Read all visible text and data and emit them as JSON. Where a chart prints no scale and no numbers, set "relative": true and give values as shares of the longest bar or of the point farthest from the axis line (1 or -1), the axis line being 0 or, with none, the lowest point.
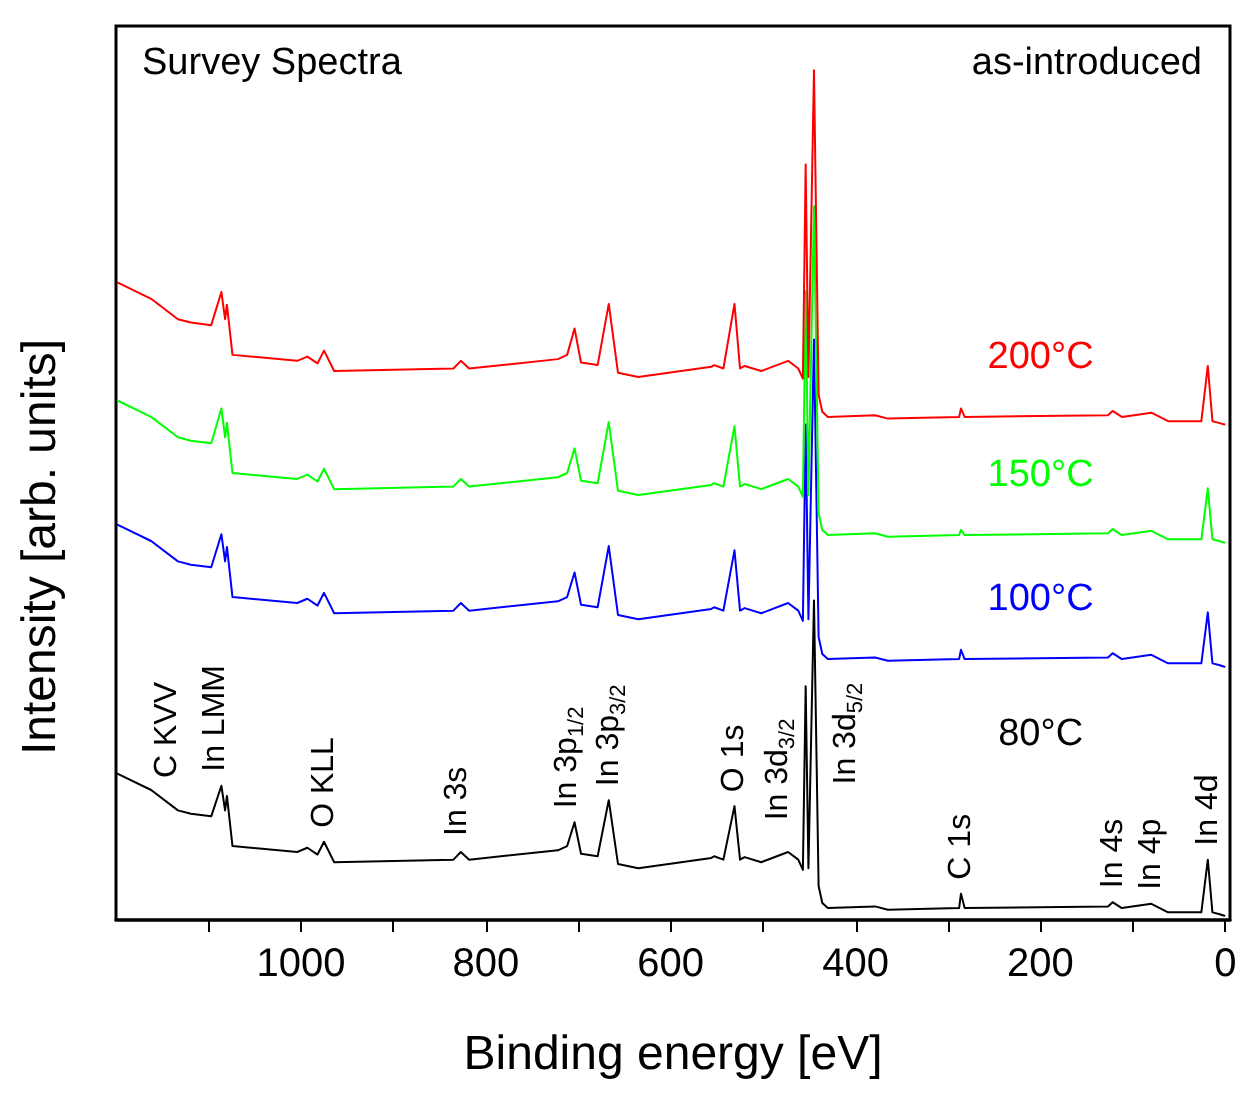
{
  "chart_data": {
    "type": "line",
    "title": "Survey Spectra",
    "subtitle": "as-introduced",
    "xlabel": "Binding energy [eV]",
    "ylabel": "Intensity [arb. units]",
    "relative": true,
    "xlim": [
      1200,
      -5
    ],
    "xticks": [
      0,
      {
        "value": 100,
        "label": null
      },
      200,
      {
        "value": 300,
        "label": null
      },
      400,
      {
        "value": 500,
        "label": null
      },
      600,
      {
        "value": 700,
        "label": null
      },
      800,
      {
        "value": 900,
        "label": null
      },
      1000,
      {
        "value": 1100,
        "label": null
      }
    ],
    "x": [
      1198,
      1162,
      1133,
      1119,
      1097,
      1086,
      1082,
      1080,
      1074,
      1004,
      993,
      982,
      975,
      964,
      835,
      827,
      818,
      722,
      712,
      704,
      697,
      679,
      667,
      657,
      635,
      556,
      553,
      543,
      531,
      525,
      520,
      502,
      473,
      462,
      457,
      454,
      451,
      445,
      440,
      436,
      430,
      379,
      365,
      288,
      286,
      282,
      127,
      122,
      112,
      80,
      62,
      26,
      19,
      14,
      7,
      1
    ],
    "series": [
      {
        "name": "80°C",
        "color": "#000000",
        "values": [
          0.172,
          0.153,
          0.129,
          0.125,
          0.122,
          0.158,
          0.129,
          0.146,
          0.087,
          0.08,
          0.085,
          0.077,
          0.092,
          0.068,
          0.071,
          0.08,
          0.071,
          0.082,
          0.087,
          0.115,
          0.078,
          0.075,
          0.141,
          0.066,
          0.061,
          0.073,
          0.075,
          0.071,
          0.134,
          0.071,
          0.074,
          0.068,
          0.08,
          0.071,
          0.059,
          0.275,
          0.061,
          0.376,
          0.04,
          0.02,
          0.014,
          0.016,
          0.012,
          0.014,
          0.031,
          0.014,
          0.016,
          0.021,
          0.014,
          0.019,
          0.009,
          0.009,
          0.071,
          0.009,
          0.007,
          0.005
        ]
      },
      {
        "name": "100°C",
        "color": "#0000ff",
        "values": [
          0.465,
          0.446,
          0.422,
          0.418,
          0.415,
          0.454,
          0.422,
          0.439,
          0.38,
          0.373,
          0.378,
          0.37,
          0.385,
          0.361,
          0.364,
          0.373,
          0.364,
          0.375,
          0.38,
          0.409,
          0.371,
          0.368,
          0.44,
          0.359,
          0.354,
          0.366,
          0.368,
          0.364,
          0.435,
          0.364,
          0.367,
          0.361,
          0.373,
          0.364,
          0.352,
          0.583,
          0.354,
          0.683,
          0.333,
          0.313,
          0.307,
          0.309,
          0.305,
          0.307,
          0.318,
          0.307,
          0.309,
          0.314,
          0.307,
          0.312,
          0.302,
          0.302,
          0.362,
          0.302,
          0.3,
          0.298
        ]
      },
      {
        "name": "150°C",
        "color": "#00ff00",
        "values": [
          0.611,
          0.592,
          0.568,
          0.564,
          0.561,
          0.602,
          0.568,
          0.585,
          0.526,
          0.519,
          0.524,
          0.516,
          0.531,
          0.507,
          0.51,
          0.519,
          0.51,
          0.521,
          0.526,
          0.555,
          0.517,
          0.514,
          0.586,
          0.505,
          0.5,
          0.512,
          0.514,
          0.51,
          0.581,
          0.51,
          0.513,
          0.507,
          0.519,
          0.51,
          0.498,
          0.74,
          0.5,
          0.84,
          0.479,
          0.459,
          0.453,
          0.455,
          0.451,
          0.453,
          0.459,
          0.453,
          0.455,
          0.46,
          0.453,
          0.458,
          0.448,
          0.448,
          0.508,
          0.448,
          0.446,
          0.444
        ]
      },
      {
        "name": "200°C",
        "color": "#ff0000",
        "values": [
          0.75,
          0.731,
          0.707,
          0.703,
          0.7,
          0.739,
          0.707,
          0.724,
          0.665,
          0.658,
          0.663,
          0.655,
          0.67,
          0.646,
          0.649,
          0.658,
          0.649,
          0.66,
          0.665,
          0.696,
          0.656,
          0.653,
          0.725,
          0.644,
          0.639,
          0.651,
          0.653,
          0.649,
          0.725,
          0.649,
          0.652,
          0.646,
          0.658,
          0.649,
          0.637,
          0.889,
          0.639,
          1,
          0.618,
          0.598,
          0.592,
          0.594,
          0.59,
          0.592,
          0.602,
          0.592,
          0.594,
          0.599,
          0.592,
          0.597,
          0.587,
          0.587,
          0.652,
          0.587,
          0.585,
          0.583
        ]
      }
    ],
    "annotations": [
      {
        "text": "C KVV",
        "x": 1162,
        "y": 0.153
      },
      {
        "text": "In LMM",
        "x": 1086,
        "y": 0.158
      },
      {
        "text": "O KLL",
        "x": 975,
        "y": 0.092
      },
      {
        "text": "In 3s",
        "x": 827,
        "y": 0.08
      },
      {
        "text": "In 3p$_{1/2}$",
        "x": 704,
        "y": 0.115
      },
      {
        "text": "In 3p$_{3/2}$",
        "x": 667,
        "y": 0.141
      },
      {
        "text": "O 1s",
        "x": 531,
        "y": 0.134
      },
      {
        "text": "In 3d$_{3/2}$",
        "x": 454,
        "y": 0.275
      },
      {
        "text": "In 3d$_{5/2}$",
        "x": 445,
        "y": 0.376
      },
      {
        "text": "C 1s",
        "x": 286,
        "y": 0.031
      },
      {
        "text": "In 4s",
        "x": 122,
        "y": 0.021
      },
      {
        "text": "In 4p",
        "x": 80,
        "y": 0.019
      },
      {
        "text": "In 4d",
        "x": 19,
        "y": 0.071
      }
    ]
  }
}
